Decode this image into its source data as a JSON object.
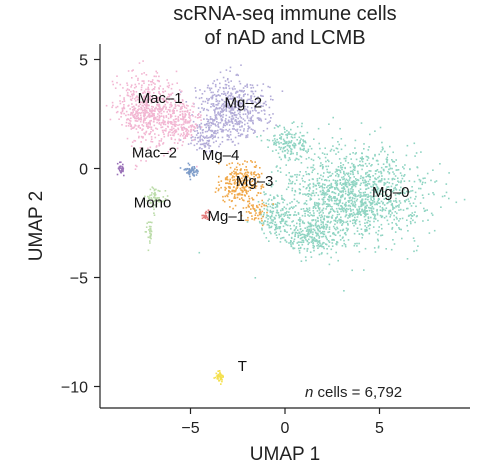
{
  "chart_data": {
    "type": "scatter",
    "title_lines": [
      "scRNA-seq immune cells",
      "of nAD and LCMB"
    ],
    "xlabel": "UMAP 1",
    "ylabel": "UMAP 2",
    "xlim": [
      -10,
      10
    ],
    "ylim": [
      -11,
      5.5
    ],
    "xticks": [
      -5,
      0,
      5
    ],
    "yticks": [
      5,
      0,
      -5,
      -10
    ],
    "tick_labels": {
      "x": [
        "−5",
        "0",
        "5"
      ],
      "y": [
        "5",
        "0",
        "−5",
        "−10"
      ]
    },
    "grid": false,
    "annotation": {
      "italic": "n",
      "text": " cells = 6,792"
    },
    "clusters": [
      {
        "name": "Mg-0",
        "label": "Mg–0",
        "color": "#8fd4c2",
        "label_x": 4.6,
        "label_y": -1.3
      },
      {
        "name": "Mg-2",
        "label": "Mg–2",
        "color": "#b3acd8",
        "label_x": -3.2,
        "label_y": 2.8
      },
      {
        "name": "Mac-1",
        "label": "Mac–1",
        "color": "#f2b6d2",
        "label_x": -7.8,
        "label_y": 3.0
      },
      {
        "name": "Mg-3",
        "label": "Mg–3",
        "color": "#f0a84a",
        "label_x": -2.6,
        "label_y": -0.8
      },
      {
        "name": "Mg-4",
        "label": "Mg–4",
        "color": "#7d9cc9",
        "label_x": -4.4,
        "label_y": 0.4
      },
      {
        "name": "Mac-2",
        "label": "Mac–2",
        "color": "#9b72b8",
        "label_x": -8.1,
        "label_y": 0.5
      },
      {
        "name": "Mono",
        "label": "Mono",
        "color": "#bcdcaa",
        "label_x": -8.0,
        "label_y": -1.8
      },
      {
        "name": "Mg-1",
        "label": "Mg–1",
        "color": "#e37b7b",
        "label_x": -4.1,
        "label_y": -2.4
      },
      {
        "name": "T",
        "label": "T",
        "color": "#f4e04d",
        "label_x": -2.5,
        "label_y": -9.3
      }
    ]
  }
}
